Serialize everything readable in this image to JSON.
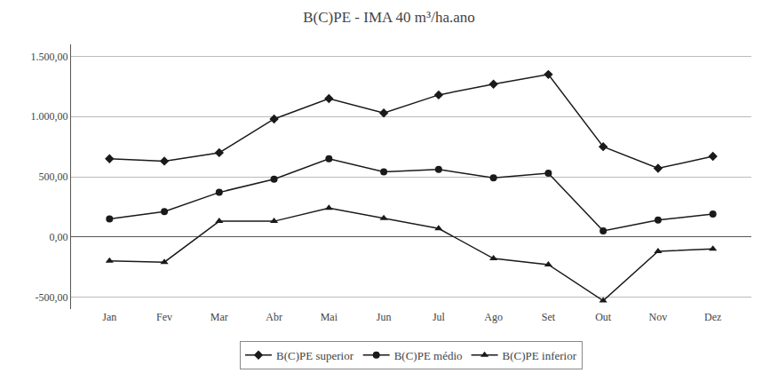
{
  "chart_data": {
    "type": "line",
    "title": "B(C)PE - IMA 40 m³/ha.ano",
    "categories": [
      "Jan",
      "Fev",
      "Mar",
      "Abr",
      "Mai",
      "Jun",
      "Jul",
      "Ago",
      "Set",
      "Out",
      "Nov",
      "Dez"
    ],
    "series": [
      {
        "name": "B(C)PE superior",
        "color": "#1a1a1a",
        "marker": "diamond",
        "values": [
          650,
          630,
          700,
          980,
          1150,
          1030,
          1180,
          1270,
          1350,
          750,
          570,
          670
        ]
      },
      {
        "name": "B(C)PE médio",
        "color": "#1a1a1a",
        "marker": "circle",
        "values": [
          150,
          210,
          370,
          480,
          650,
          540,
          560,
          490,
          530,
          50,
          140,
          190
        ]
      },
      {
        "name": "B(C)PE inferior",
        "color": "#1a1a1a",
        "marker": "triangle-up",
        "values": [
          -200,
          -210,
          130,
          130,
          240,
          155,
          70,
          -180,
          -230,
          -530,
          -120,
          -100
        ]
      }
    ],
    "ylim": [
      -600,
      1600
    ],
    "yticks": [
      {
        "value": -500,
        "label": "-500,00"
      },
      {
        "value": 0,
        "label": "0,00"
      },
      {
        "value": 500,
        "label": "500,00"
      },
      {
        "value": 1000,
        "label": "1.000,00"
      },
      {
        "value": 1500,
        "label": "1.500,00"
      }
    ],
    "grid": true,
    "legend": "bottom"
  }
}
